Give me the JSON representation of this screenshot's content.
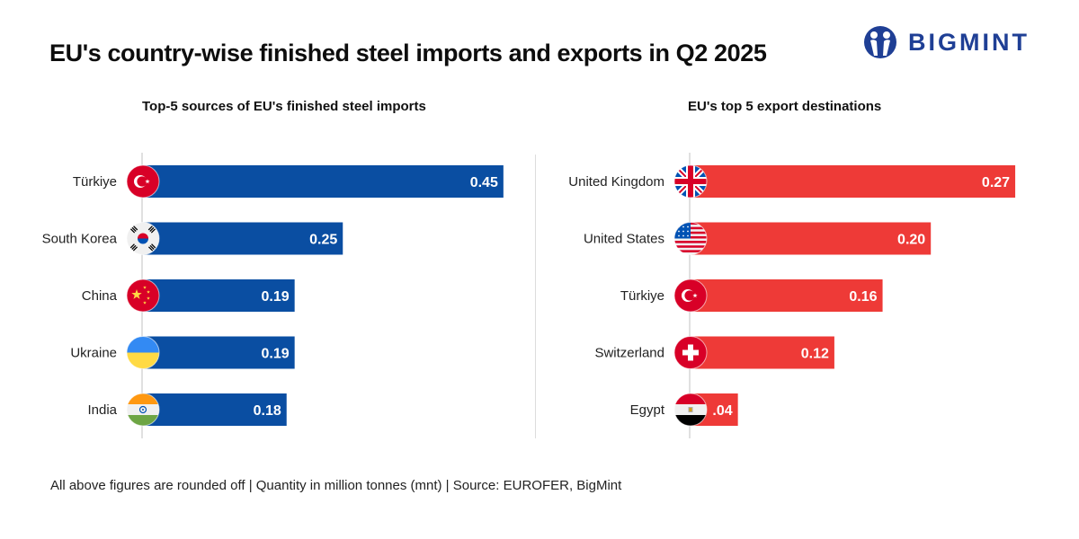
{
  "title": "EU's country-wise finished steel imports and exports in Q2 2025",
  "logo": {
    "icon": "bigmint-logo-icon",
    "text": "BIGMINT"
  },
  "footer": "All above figures are rounded off | Quantity in million tonnes (mnt) | Source: EUROFER, BigMint",
  "colors": {
    "imports": "#0a4ea2",
    "exports": "#ee3a37",
    "brand": "#1f3f95"
  },
  "chart_data": [
    {
      "type": "bar",
      "orientation": "horizontal",
      "title": "Top-5 sources of EU's finished steel imports",
      "unit": "million tonnes (mnt)",
      "categories": [
        "Türkiye",
        "South Korea",
        "China",
        "Ukraine",
        "India"
      ],
      "flags": [
        "turkey-flag-icon",
        "south-korea-flag-icon",
        "china-flag-icon",
        "ukraine-flag-icon",
        "india-flag-icon"
      ],
      "values": [
        0.45,
        0.25,
        0.19,
        0.19,
        0.18
      ],
      "labels": [
        "0.45",
        "0.25",
        "0.19",
        "0.19",
        "0.18"
      ],
      "xlim": [
        0,
        0.5
      ],
      "grid": false,
      "color": "#0a4ea2"
    },
    {
      "type": "bar",
      "orientation": "horizontal",
      "title": "EU's top 5 export destinations",
      "unit": "million tonnes (mnt)",
      "categories": [
        "United Kingdom",
        "United States",
        "Türkiye",
        "Switzerland",
        "Egypt"
      ],
      "flags": [
        "uk-flag-icon",
        "us-flag-icon",
        "turkey-flag-icon",
        "switzerland-flag-icon",
        "egypt-flag-icon"
      ],
      "values": [
        0.27,
        0.2,
        0.16,
        0.12,
        0.04
      ],
      "labels": [
        "0.27",
        "0.20",
        "0.16",
        "0.12",
        ".04"
      ],
      "xlim": [
        0,
        0.3
      ],
      "grid": false,
      "color": "#ee3a37"
    }
  ]
}
